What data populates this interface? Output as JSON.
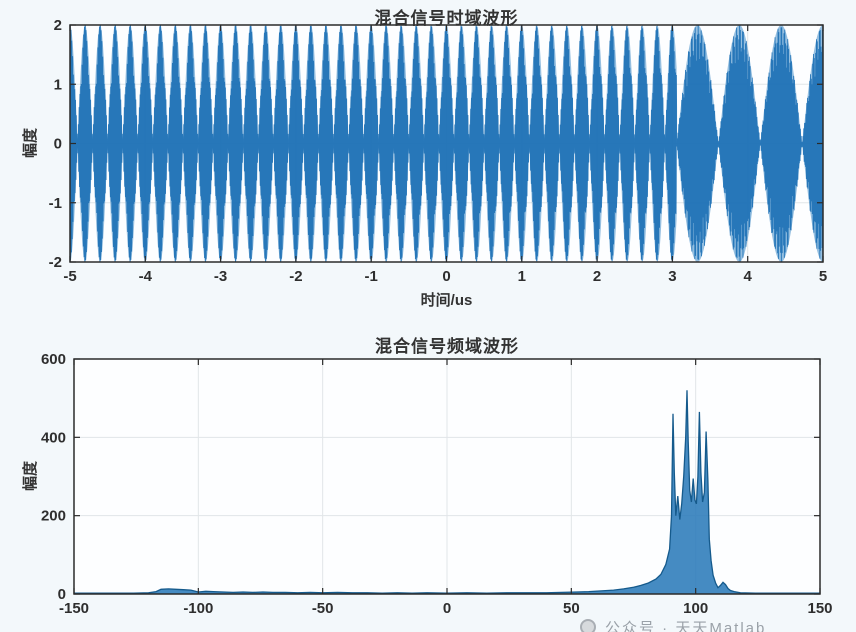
{
  "watermark": {
    "logo": "circle-logo-icon",
    "text": "公众号 · 天天Matlab"
  },
  "colors": {
    "bg": "#f3f8fb",
    "plot_bg": "#fdfeff",
    "frame": "#2b2b2b",
    "grid": "#e1e5e8",
    "tick_text": "#2e2e2e",
    "signal_fill": "#5598cd",
    "signal_stroke": "#1b6fb5",
    "spectrum_fill": "#2b7bb9",
    "spectrum_stroke": "#155a8c"
  },
  "chart_data": [
    {
      "type": "line",
      "id": "time_domain",
      "title": "混合信号时域波形",
      "xlabel": "时间/us",
      "ylabel": "幅度",
      "xlim": [
        -5,
        5
      ],
      "ylim": [
        -2,
        2
      ],
      "xticks": [
        -5,
        -4,
        -3,
        -2,
        -1,
        0,
        1,
        2,
        3,
        4,
        5
      ],
      "yticks": [
        -2,
        -1,
        0,
        1,
        2
      ],
      "grid": true,
      "description": "Mixed two-tone beat signal: fast beats (~0.2us lobes) from -5 to ~3us, then wide beats (~0.55us lobes) from ~3 to 5us, envelope peak amplitude 2",
      "segments": [
        {
          "t_start": -5,
          "t_end": 3.0556,
          "freq1_MHz": 95,
          "freq2_MHz": 100,
          "amplitude": 1
        },
        {
          "t_start": 3.0556,
          "t_end": 5,
          "freq1_MHz": 100,
          "freq2_MHz": 101.8,
          "amplitude": 1
        }
      ]
    },
    {
      "type": "area",
      "id": "frequency_domain",
      "title": "混合信号频域波形",
      "xlabel": "",
      "ylabel": "幅度",
      "xlim": [
        -150,
        150
      ],
      "ylim": [
        0,
        600
      ],
      "xticks": [
        -150,
        -100,
        -50,
        0,
        50,
        100,
        150
      ],
      "yticks": [
        0,
        200,
        400,
        600
      ],
      "grid": true,
      "description": "Spectrum: near-zero baseline, small bump near -115..-93 (height ~13), main peak cluster 89..106 with spikes ~460/520/465/415, small shoulder ~111",
      "points": [
        [
          -150,
          2
        ],
        [
          -138,
          2
        ],
        [
          -126,
          2
        ],
        [
          -120,
          3
        ],
        [
          -117,
          6
        ],
        [
          -115,
          12
        ],
        [
          -112,
          13
        ],
        [
          -109,
          12
        ],
        [
          -106,
          11
        ],
        [
          -103,
          10
        ],
        [
          -100,
          5
        ],
        [
          -97,
          7
        ],
        [
          -94,
          6
        ],
        [
          -90,
          5
        ],
        [
          -86,
          4
        ],
        [
          -82,
          5
        ],
        [
          -78,
          4
        ],
        [
          -74,
          5
        ],
        [
          -70,
          4
        ],
        [
          -65,
          4
        ],
        [
          -60,
          3
        ],
        [
          -55,
          4
        ],
        [
          -50,
          3
        ],
        [
          -44,
          4
        ],
        [
          -38,
          3
        ],
        [
          -32,
          3
        ],
        [
          -26,
          2
        ],
        [
          -20,
          3
        ],
        [
          -14,
          2
        ],
        [
          -8,
          3
        ],
        [
          0,
          2
        ],
        [
          8,
          3
        ],
        [
          16,
          2
        ],
        [
          24,
          3
        ],
        [
          32,
          3
        ],
        [
          40,
          3
        ],
        [
          46,
          4
        ],
        [
          52,
          5
        ],
        [
          57,
          6
        ],
        [
          62,
          8
        ],
        [
          67,
          10
        ],
        [
          71,
          13
        ],
        [
          75,
          17
        ],
        [
          78,
          22
        ],
        [
          81,
          28
        ],
        [
          84,
          38
        ],
        [
          86,
          50
        ],
        [
          88,
          75
        ],
        [
          89.5,
          115
        ],
        [
          90.3,
          200
        ],
        [
          90.9,
          460
        ],
        [
          91.4,
          310
        ],
        [
          92,
          200
        ],
        [
          92.8,
          250
        ],
        [
          93.6,
          190
        ],
        [
          94.4,
          230
        ],
        [
          95.2,
          300
        ],
        [
          96,
          400
        ],
        [
          96.5,
          520
        ],
        [
          97,
          390
        ],
        [
          97.6,
          265
        ],
        [
          98.3,
          235
        ],
        [
          99,
          295
        ],
        [
          99.7,
          240
        ],
        [
          100.3,
          230
        ],
        [
          100.9,
          300
        ],
        [
          101.5,
          465
        ],
        [
          102.1,
          310
        ],
        [
          102.8,
          235
        ],
        [
          103.5,
          260
        ],
        [
          104.2,
          415
        ],
        [
          104.9,
          290
        ],
        [
          105.5,
          140
        ],
        [
          106.2,
          85
        ],
        [
          107,
          48
        ],
        [
          108,
          28
        ],
        [
          109,
          16
        ],
        [
          110,
          22
        ],
        [
          111,
          30
        ],
        [
          112,
          24
        ],
        [
          113,
          14
        ],
        [
          114,
          9
        ],
        [
          115.5,
          6
        ],
        [
          118,
          3
        ],
        [
          124,
          2
        ],
        [
          132,
          2
        ],
        [
          141,
          2
        ],
        [
          150,
          2
        ]
      ]
    }
  ]
}
